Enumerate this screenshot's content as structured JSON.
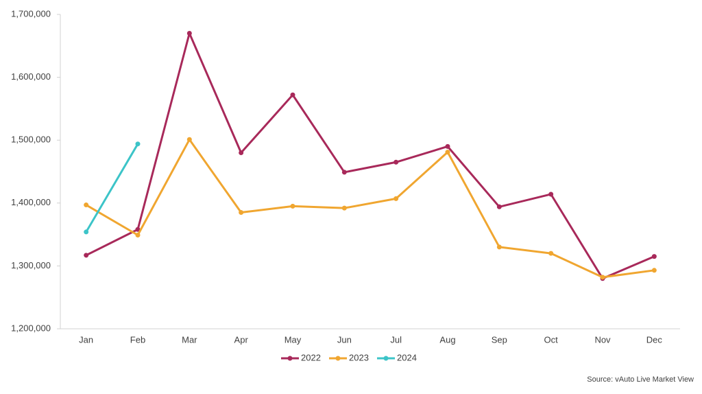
{
  "chart_data": {
    "type": "line",
    "categories": [
      "Jan",
      "Feb",
      "Mar",
      "Apr",
      "May",
      "Jun",
      "Jul",
      "Aug",
      "Sep",
      "Oct",
      "Nov",
      "Dec"
    ],
    "series": [
      {
        "name": "2022",
        "color": "#a8295a",
        "values": [
          1317000,
          1358000,
          1670000,
          1480000,
          1572000,
          1449000,
          1465000,
          1490000,
          1394000,
          1414000,
          1280000,
          1315000
        ]
      },
      {
        "name": "2023",
        "color": "#f0a630",
        "values": [
          1397000,
          1349000,
          1501000,
          1385000,
          1395000,
          1392000,
          1407000,
          1481000,
          1330000,
          1320000,
          1282000,
          1293000
        ]
      },
      {
        "name": "2024",
        "color": "#3cc4c8",
        "values": [
          1354000,
          1494000,
          null,
          null,
          null,
          null,
          null,
          null,
          null,
          null,
          null,
          null
        ]
      }
    ],
    "ylim": [
      1200000,
      1700000
    ],
    "yticks": [
      {
        "value": 1200000,
        "label": "1,200,000"
      },
      {
        "value": 1300000,
        "label": "1,300,000"
      },
      {
        "value": 1400000,
        "label": "1,400,000"
      },
      {
        "value": 1500000,
        "label": "1,500,000"
      },
      {
        "value": 1600000,
        "label": "1,600,000"
      },
      {
        "value": 1700000,
        "label": "1,700,000"
      }
    ],
    "grid": false,
    "legend": "bottom",
    "source": "Source: vAuto Live Market View"
  }
}
